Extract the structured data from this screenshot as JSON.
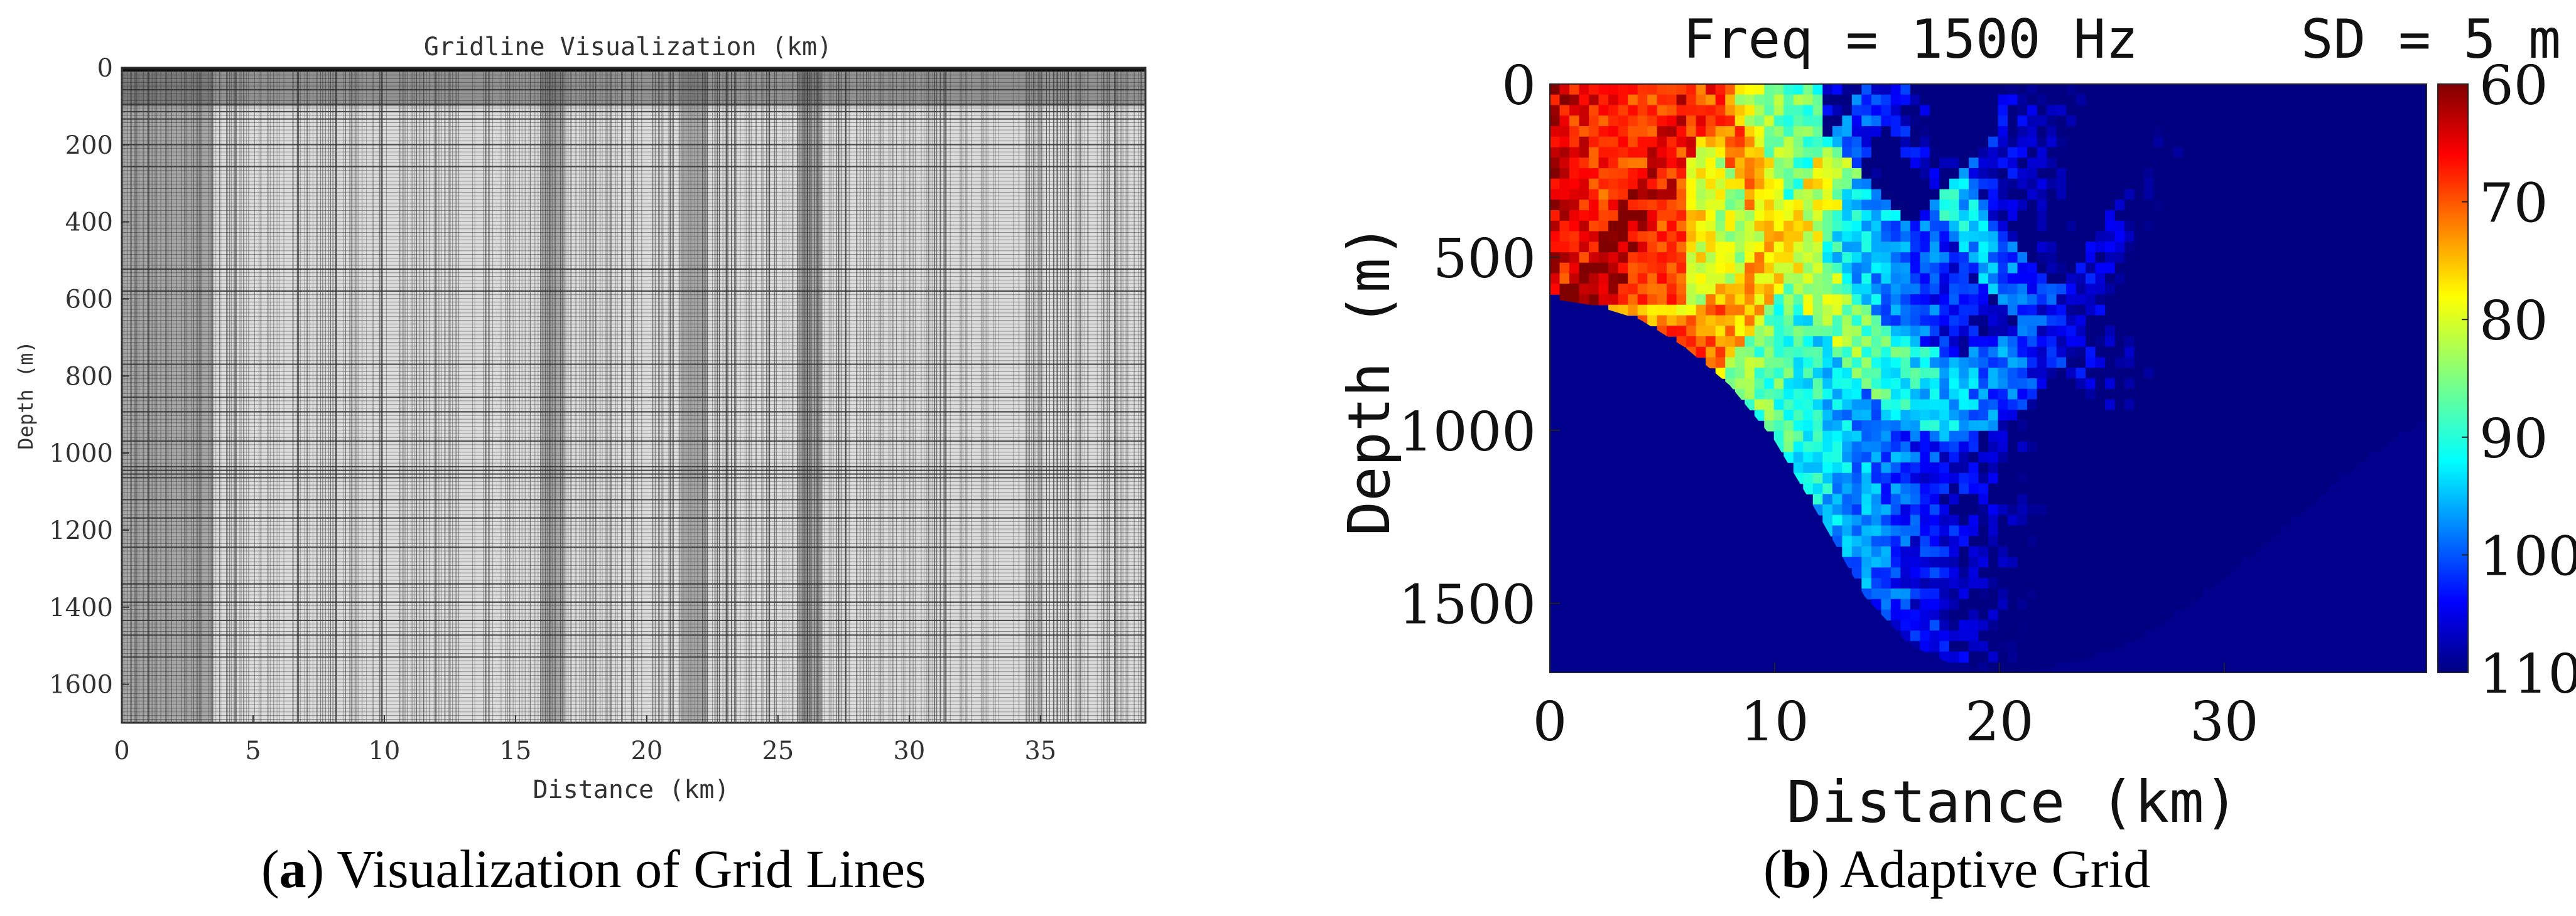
{
  "chart_data": [
    {
      "type": "heatmap",
      "panel_letter": "a",
      "caption": "Visualization of Grid Lines",
      "title": "Gridline Visualization (km)",
      "xlabel": "Distance (km)",
      "ylabel": "Depth (m)",
      "xlim": [
        0,
        39
      ],
      "ylim": [
        1700,
        0
      ],
      "xticks": [
        0,
        5,
        10,
        15,
        20,
        25,
        30,
        35
      ],
      "yticks": [
        0,
        200,
        400,
        600,
        800,
        1000,
        1200,
        1400,
        1600
      ],
      "grid_bands_x_km": [
        [
          0,
          3.5
        ],
        [
          16,
          16.9
        ],
        [
          21.3,
          22.2
        ],
        [
          25.8,
          26.7
        ]
      ],
      "dense_surface_layer_depth_m": [
        0,
        100
      ],
      "colors": {
        "background": "#dcdcdc",
        "band": "#7a7a7a",
        "line": "#2a2a2a"
      }
    },
    {
      "type": "heatmap",
      "panel_letter": "b",
      "caption": "Adaptive Grid",
      "title": "Freq = 1500 Hz     SD = 5 m",
      "xlabel": "Distance (km)",
      "ylabel": "Depth (m)",
      "xlim": [
        0,
        39
      ],
      "ylim": [
        1700,
        0
      ],
      "xticks": [
        0,
        10,
        20,
        30
      ],
      "yticks": [
        0,
        500,
        1000,
        1500
      ],
      "colorbar": {
        "ticks": [
          60,
          70,
          80,
          90,
          100,
          110
        ],
        "range": [
          60,
          110
        ],
        "colormap": "jet",
        "reversed": true
      },
      "bathymetry_km_m": [
        [
          0,
          620
        ],
        [
          2,
          640
        ],
        [
          4,
          680
        ],
        [
          6,
          760
        ],
        [
          8,
          870
        ],
        [
          10,
          1030
        ],
        [
          12,
          1250
        ],
        [
          14,
          1480
        ],
        [
          16,
          1620
        ],
        [
          18,
          1680
        ],
        [
          20,
          1700
        ],
        [
          22,
          1690
        ],
        [
          24,
          1660
        ],
        [
          26,
          1610
        ],
        [
          28,
          1530
        ],
        [
          30,
          1430
        ],
        [
          32,
          1320
        ],
        [
          34,
          1210
        ],
        [
          36,
          1100
        ],
        [
          38,
          1010
        ],
        [
          39,
          980
        ]
      ]
    }
  ]
}
